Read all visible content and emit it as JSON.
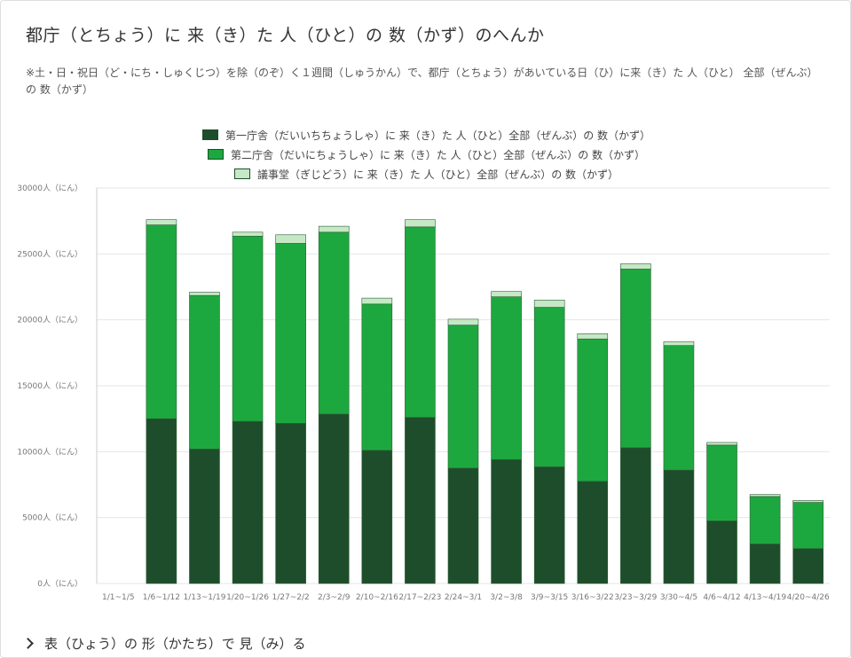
{
  "title": "都庁（とちょう）に 来（き）た 人（ひと）の 数（かず）のへんか",
  "description": "※土・日・祝日（ど・にち・しゅくじつ）を除（のぞ）く１週間（しゅうかん）で、都庁（とちょう）があいている日（ひ）に来（き）た 人（ひと） 全部（ぜんぶ）の 数（かず）",
  "footer_toggle_label": "表（ひょう）の 形（かたち）で 見（み）る",
  "colors": {
    "series1": "#1e4d2b",
    "series2": "#1da83f",
    "series3": "#c5e8c5",
    "grid": "#e6e6e6",
    "axis_text": "#777777"
  },
  "chart_data": {
    "type": "bar",
    "stacked": true,
    "categories": [
      "1/1~1/5",
      "1/6~1/12",
      "1/13~1/19",
      "1/20~1/26",
      "1/27~2/2",
      "2/3~2/9",
      "2/10~2/16",
      "2/17~2/23",
      "2/24~3/1",
      "3/2~3/8",
      "3/9~3/15",
      "3/16~3/22",
      "3/23~3/29",
      "3/30~4/5",
      "4/6~4/12",
      "4/13~4/19",
      "4/20~4/26"
    ],
    "series": [
      {
        "name": "第一庁舎（だいいちちょうしゃ）に 来（き）た 人（ひと）全部（ぜんぶ）の 数（かず）",
        "values": [
          0,
          12500,
          10200,
          12300,
          12150,
          12850,
          10100,
          12600,
          8750,
          9400,
          8850,
          7750,
          10300,
          8600,
          4750,
          3000,
          2650
        ]
      },
      {
        "name": "第二庁舎（だいにちょうしゃ）に 来（き）た 人（ひと）全部（ぜんぶ）の 数（かず）",
        "values": [
          0,
          14700,
          11650,
          14050,
          13650,
          13800,
          11100,
          14450,
          10850,
          12350,
          12100,
          10800,
          13550,
          9450,
          5750,
          3600,
          3500
        ]
      },
      {
        "name": "議事堂（ぎじどう）に 来（き）た 人（ひと）全部（ぜんぶ）の 数（かず）",
        "values": [
          0,
          400,
          250,
          300,
          650,
          450,
          450,
          550,
          450,
          400,
          550,
          400,
          400,
          300,
          200,
          150,
          150
        ]
      }
    ],
    "yticks": [
      "0人（にん）",
      "5000人（にん）",
      "10000人（にん）",
      "15000人（にん）",
      "20000人（にん）",
      "25000人（にん）",
      "30000人（にん）"
    ],
    "ylim": [
      0,
      30000
    ],
    "grid": true,
    "legend_position": "top-center"
  }
}
